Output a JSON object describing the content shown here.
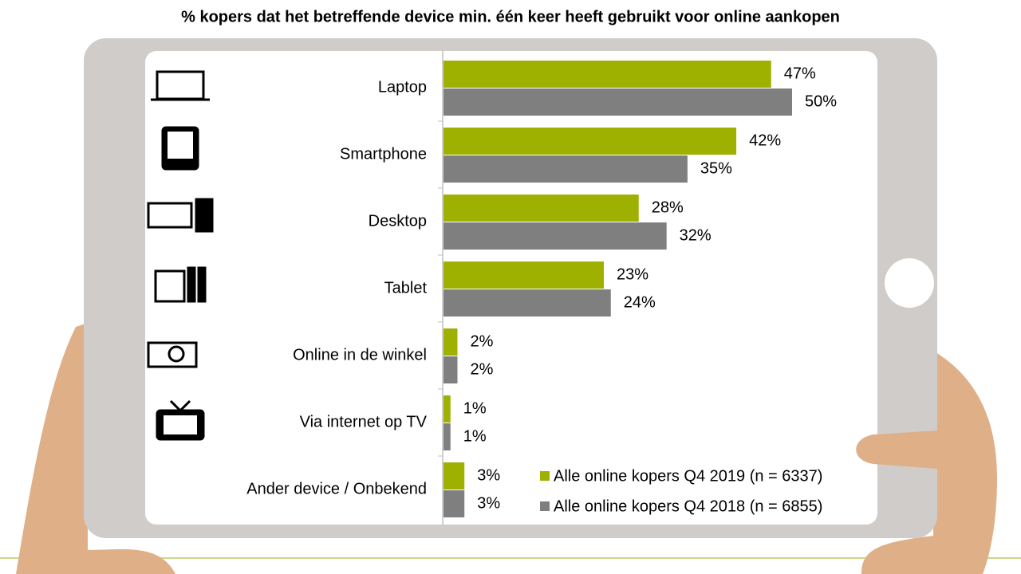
{
  "chart_data": {
    "type": "bar",
    "orientation": "horizontal",
    "title": "% kopers dat het betreffende device min. één keer heeft gebruikt voor online aankopen",
    "categories": [
      "Laptop",
      "Smartphone",
      "Desktop",
      "Tablet",
      "Online in de winkel",
      "Via internet op TV",
      "Ander device / Onbekend"
    ],
    "series": [
      {
        "name": "Alle online kopers Q4 2019 (n = 6337)",
        "color": "#9eb000",
        "values": [
          47,
          42,
          28,
          23,
          2,
          1,
          3
        ],
        "value_labels": [
          "47%",
          "42%",
          "28%",
          "23%",
          "2%",
          "1%",
          "3%"
        ]
      },
      {
        "name": "Alle online kopers Q4 2018 (n = 6855)",
        "color": "#7f7f7f",
        "values": [
          50,
          35,
          32,
          24,
          2,
          1,
          3
        ],
        "value_labels": [
          "50%",
          "35%",
          "32%",
          "24%",
          "2%",
          "1%",
          "3%"
        ]
      }
    ],
    "legend": "bottom-right"
  }
}
